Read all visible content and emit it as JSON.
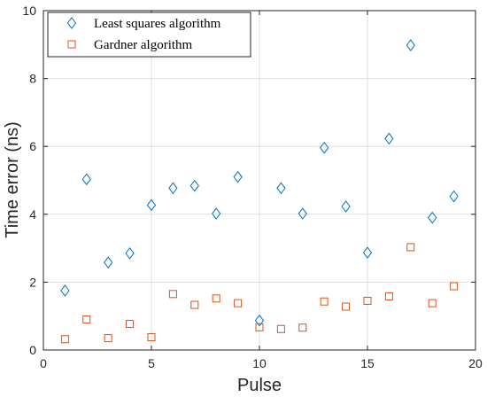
{
  "chart_data": {
    "type": "scatter",
    "title": "",
    "xlabel": "Pulse",
    "ylabel": "Time error (ns)",
    "xlim": [
      0,
      20
    ],
    "ylim": [
      0,
      10
    ],
    "xticks": [
      0,
      5,
      10,
      15,
      20
    ],
    "yticks": [
      0,
      2,
      4,
      6,
      8,
      10
    ],
    "grid": true,
    "legend_position": "top-left",
    "series": [
      {
        "name": "Least squares algorithm",
        "marker": "diamond",
        "color": "#0072BD",
        "x": [
          1,
          2,
          3,
          4,
          5,
          6,
          7,
          8,
          9,
          10,
          11,
          12,
          13,
          14,
          15,
          16,
          17,
          18,
          19
        ],
        "y": [
          1.75,
          5.03,
          2.58,
          2.85,
          4.27,
          4.77,
          4.84,
          4.02,
          5.1,
          0.87,
          4.77,
          4.02,
          5.96,
          4.23,
          2.87,
          6.23,
          8.98,
          3.9,
          4.53
        ]
      },
      {
        "name": "Gardner algorithm",
        "marker": "square",
        "color": "#D95319",
        "x": [
          1,
          2,
          3,
          4,
          5,
          6,
          7,
          8,
          9,
          10,
          11,
          12,
          13,
          14,
          15,
          16,
          17,
          18,
          19
        ],
        "y": [
          0.32,
          0.9,
          0.35,
          0.77,
          0.38,
          1.65,
          1.33,
          1.52,
          1.38,
          0.67,
          0.62,
          0.66,
          1.43,
          1.28,
          1.45,
          1.58,
          3.03,
          1.38,
          1.88
        ]
      }
    ]
  }
}
